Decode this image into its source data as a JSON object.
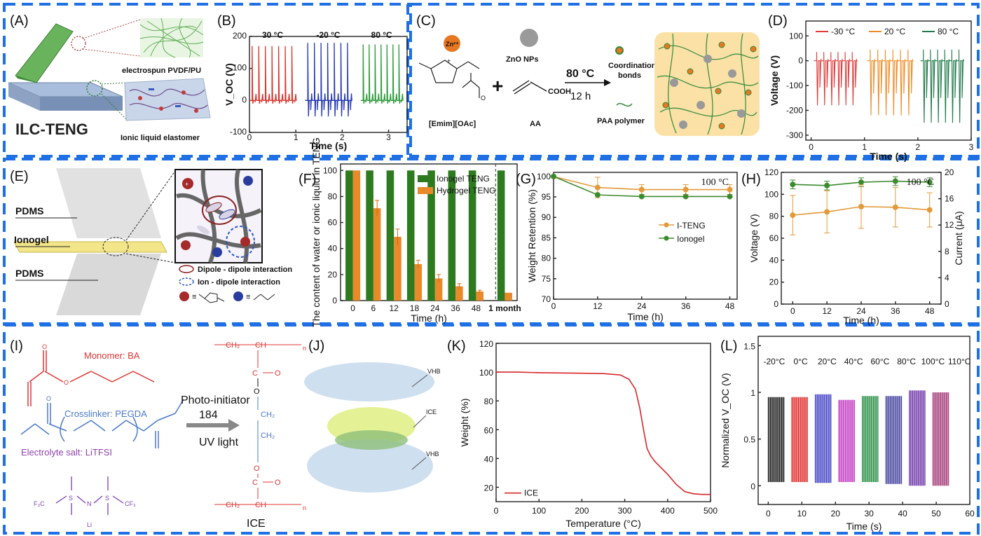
{
  "labels": {
    "A": "(A)",
    "B": "(B)",
    "C": "(C)",
    "D": "(D)",
    "E": "(E)",
    "F": "(F)",
    "G": "(G)",
    "H": "(H)",
    "I": "(I)",
    "J": "(J)",
    "K": "(K)",
    "L": "(L)"
  },
  "panelA": {
    "title": "ILC-TENG",
    "layer_top": "electrospun  PVDF/PU",
    "layer_bottom": "Ionic liquid elastomer"
  },
  "panelC": {
    "zn": "Zn²⁺",
    "zno": "ZnO NPs",
    "emim": "[Emim][OAc]",
    "aa": "AA",
    "cooh": "COOH",
    "plus": "+",
    "temp": "80 °C",
    "time": "12 h",
    "coord": "Coordination",
    "coord2": "bonds",
    "paa": "PAA polymer"
  },
  "panelE": {
    "pdms_top": "PDMS",
    "ionogel": "Ionogel",
    "pdms_bottom": "PDMS",
    "legend_dipole": "Dipole - dipole interaction",
    "legend_ion": "Ion - dipole interaction",
    "eq1": "≡",
    "eq2": "≡"
  },
  "panelI": {
    "monomer": "Monomer: BA",
    "crosslinker": "Crosslinker: PEGDA",
    "salt": "Electrolyte salt: LiTFSI",
    "photo": "Photo-initiator",
    "photo_num": "184",
    "uv": "UV light",
    "ice": "ICE",
    "cf3_left": "F₃C",
    "cf3_right": "CF₃",
    "n": "N",
    "li": "Li",
    "s": "S",
    "ch2": "CH₂",
    "ch": "CH",
    "n_sub": "n"
  },
  "panelJ": {
    "vhb_top": "VHB",
    "ice": "ICE",
    "vhb_bottom": "VHB"
  },
  "chart_data": [
    {
      "id": "B",
      "type": "line",
      "ylabel": "V_OC (V)",
      "xlabel": "Time (s)",
      "xlim": [
        0,
        3.4
      ],
      "ylim": [
        -100,
        200
      ],
      "xticks": [
        0,
        1,
        2,
        3
      ],
      "yticks": [
        -100,
        0,
        100,
        200
      ],
      "series": [
        {
          "name": "30 °C",
          "color": "#d9342b",
          "x_start": 0,
          "x_end": 1.0,
          "spikes": 7,
          "peak": 170,
          "valley": -10
        },
        {
          "name": "-20 °C",
          "color": "#2638b5",
          "x_start": 1.2,
          "x_end": 2.2,
          "spikes": 7,
          "peak": 180,
          "valley": -50
        },
        {
          "name": "80 °C",
          "color": "#2e9b3c",
          "x_start": 2.4,
          "x_end": 3.3,
          "spikes": 7,
          "peak": 175,
          "valley": -10
        }
      ]
    },
    {
      "id": "D",
      "type": "line",
      "ylabel": "Voltage (V)",
      "xlabel": "Time (s)",
      "xlim": [
        -0.1,
        3.0
      ],
      "ylim": [
        -320,
        160
      ],
      "xticks": [
        0,
        1,
        2,
        3
      ],
      "yticks": [
        -300,
        -200,
        -100,
        0,
        100
      ],
      "series": [
        {
          "name": "-30 °C",
          "color": "#e03b3b",
          "x_start": 0.05,
          "x_end": 0.85,
          "spikes": 6,
          "peak": 35,
          "valley": -180
        },
        {
          "name": "20 °C",
          "color": "#f08a24",
          "x_start": 1.05,
          "x_end": 1.9,
          "spikes": 6,
          "peak": 45,
          "valley": -220
        },
        {
          "name": "80 °C",
          "color": "#1f7a4a",
          "x_start": 2.05,
          "x_end": 2.85,
          "spikes": 6,
          "peak": 45,
          "valley": -250
        }
      ]
    },
    {
      "id": "F",
      "type": "bar",
      "ylabel": "The content of water or ionic liquid in TENG",
      "xlabel": "Time (h)",
      "categories": [
        "0",
        "6",
        "12",
        "18",
        "24",
        "36",
        "48",
        "1 month"
      ],
      "ylim": [
        0,
        100
      ],
      "yticks": [
        0,
        20,
        40,
        60,
        80,
        100
      ],
      "series": [
        {
          "name": "Ionogel TENG",
          "color": "#2d7a1f",
          "values": [
            100,
            100,
            100,
            100,
            100,
            100,
            100,
            100
          ]
        },
        {
          "name": "Hydrogel TENG",
          "color": "#e8892a",
          "values": [
            100,
            71,
            49,
            28,
            17,
            11,
            7,
            6
          ],
          "errors": [
            0,
            6,
            6,
            3,
            3,
            2,
            1,
            0
          ]
        }
      ]
    },
    {
      "id": "G",
      "type": "line",
      "ylabel": "Weight Retention (%)",
      "xlabel": "Time (h)",
      "annotation": "100 °C",
      "xlim": [
        0,
        50
      ],
      "ylim": [
        70,
        101
      ],
      "xticks": [
        0,
        12,
        24,
        36,
        48
      ],
      "yticks": [
        70,
        75,
        80,
        85,
        90,
        95,
        100
      ],
      "series": [
        {
          "name": "I-TENG",
          "color": "#e39a3a",
          "x": [
            0,
            12,
            24,
            36,
            48
          ],
          "y": [
            100,
            97.3,
            96.8,
            96.8,
            96.8
          ],
          "errors": [
            0,
            2.5,
            1.2,
            1.2,
            1.2
          ]
        },
        {
          "name": "Ionogel",
          "color": "#3c8a2e",
          "x": [
            0,
            12,
            24,
            36,
            48
          ],
          "y": [
            100,
            95.5,
            95.1,
            95.1,
            95.1
          ],
          "errors": [
            0,
            0,
            0,
            0,
            0
          ]
        }
      ]
    },
    {
      "id": "H",
      "type": "line",
      "ylabel": "Voltage (V)",
      "ylabel2": "Current (μA)",
      "xlabel": "Time (h)",
      "annotation": "100 °C",
      "xlim": [
        -4,
        52
      ],
      "ylim": [
        0,
        120
      ],
      "ylim2": [
        0,
        20
      ],
      "xticks": [
        0,
        12,
        24,
        36,
        48
      ],
      "yticks": [
        0,
        20,
        40,
        60,
        80,
        100,
        120
      ],
      "yticks2": [
        0,
        4,
        8,
        12,
        16,
        20
      ],
      "series": [
        {
          "name": "Voltage",
          "color": "#3c8a2e",
          "axis": "left",
          "x": [
            0,
            12,
            24,
            36,
            48
          ],
          "y": [
            109,
            108,
            111,
            112,
            111
          ],
          "errors": [
            4,
            4,
            4,
            4,
            4
          ]
        },
        {
          "name": "Current",
          "color": "#e39a3a",
          "axis": "right",
          "x": [
            0,
            12,
            24,
            36,
            48
          ],
          "y": [
            13.5,
            14,
            14.8,
            14.7,
            14.3
          ],
          "errors": [
            3,
            3.2,
            3.3,
            3,
            2.6
          ]
        }
      ]
    },
    {
      "id": "K",
      "type": "line",
      "ylabel": "Weight (%)",
      "xlabel": "Temperature (°C)",
      "xlim": [
        0,
        500
      ],
      "ylim": [
        10,
        120
      ],
      "xticks": [
        0,
        100,
        200,
        300,
        400,
        500
      ],
      "yticks": [
        20,
        40,
        60,
        80,
        100,
        120
      ],
      "series": [
        {
          "name": "ICE",
          "color": "#d8262b",
          "x": [
            0,
            50,
            100,
            150,
            200,
            250,
            290,
            310,
            325,
            335,
            345,
            352,
            360,
            370,
            380,
            400,
            420,
            440,
            460,
            480,
            500
          ],
          "y": [
            100,
            100,
            99.6,
            99.4,
            99.2,
            99,
            98,
            95,
            88,
            75,
            58,
            47,
            42,
            38,
            35,
            29,
            22,
            17,
            15.5,
            15,
            15
          ]
        }
      ]
    },
    {
      "id": "L",
      "type": "bar",
      "ylabel": "Normalized V_OC (V)",
      "xlabel": "Time (s)",
      "xlim": [
        -3,
        60
      ],
      "ylim": [
        -0.2,
        1.6
      ],
      "xticks": [
        0,
        10,
        20,
        30,
        40,
        50,
        60
      ],
      "yticks": [
        0,
        0.5,
        1.0,
        1.5
      ],
      "series": [
        {
          "name": "-20°C",
          "color": "#111111",
          "x_start": 0,
          "x_end": 5,
          "high": 0.95,
          "low": 0.04
        },
        {
          "name": "0°C",
          "color": "#e02020",
          "x_start": 7,
          "x_end": 12,
          "high": 0.95,
          "low": 0.04
        },
        {
          "name": "20°C",
          "color": "#3b3bc4",
          "x_start": 14,
          "x_end": 19,
          "high": 0.98,
          "low": 0.03
        },
        {
          "name": "40°C",
          "color": "#c030c0",
          "x_start": 21,
          "x_end": 26,
          "high": 0.92,
          "low": 0.04
        },
        {
          "name": "60°C",
          "color": "#1d8a3a",
          "x_start": 28,
          "x_end": 33,
          "high": 0.96,
          "low": 0.04
        },
        {
          "name": "80°C",
          "color": "#3a3a9a",
          "x_start": 35,
          "x_end": 40,
          "high": 0.96,
          "low": 0.02
        },
        {
          "name": "100°C",
          "color": "#6a2fa8",
          "x_start": 42,
          "x_end": 47,
          "high": 1.02,
          "low": 0.0
        },
        {
          "name": "110°C",
          "color": "#a03070",
          "x_start": 49,
          "x_end": 54,
          "high": 1.0,
          "low": 0.0
        }
      ]
    }
  ]
}
